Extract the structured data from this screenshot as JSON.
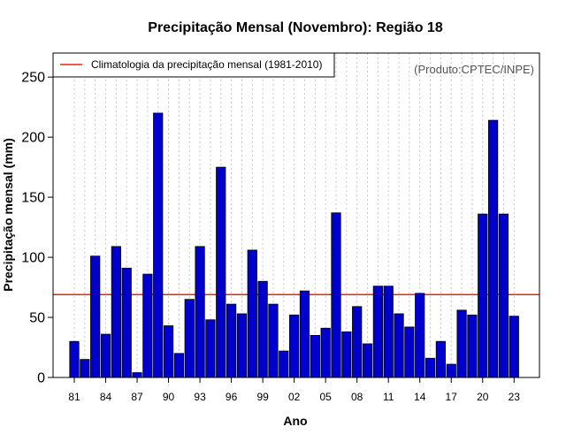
{
  "chart_data": {
    "type": "bar",
    "title": "Precipitação Mensal (Novembro): Região 18",
    "xlabel": "Ano",
    "ylabel": "Precipitação mensal (mm)",
    "ylim": [
      0,
      270
    ],
    "yticks": [
      0,
      50,
      100,
      150,
      200,
      250
    ],
    "x_tick_labels": [
      "81",
      "84",
      "87",
      "90",
      "93",
      "96",
      "99",
      "02",
      "05",
      "08",
      "11",
      "14",
      "17",
      "20",
      "23"
    ],
    "x_tick_years": [
      1981,
      1984,
      1987,
      1990,
      1993,
      1996,
      1999,
      2002,
      2005,
      2008,
      2011,
      2014,
      2017,
      2020,
      2023
    ],
    "years": [
      1981,
      1982,
      1983,
      1984,
      1985,
      1986,
      1987,
      1988,
      1989,
      1990,
      1991,
      1992,
      1993,
      1994,
      1995,
      1996,
      1997,
      1998,
      1999,
      2000,
      2001,
      2002,
      2003,
      2004,
      2005,
      2006,
      2007,
      2008,
      2009,
      2010,
      2011,
      2012,
      2013,
      2014,
      2015,
      2016,
      2017,
      2018,
      2019,
      2020,
      2021,
      2022,
      2023
    ],
    "values": [
      30,
      15,
      101,
      36,
      109,
      91,
      4,
      86,
      220,
      43,
      20,
      65,
      109,
      48,
      175,
      61,
      53,
      106,
      80,
      61,
      22,
      52,
      72,
      35,
      41,
      137,
      38,
      59,
      28,
      76,
      76,
      53,
      42,
      70,
      16,
      30,
      11,
      56,
      52,
      136,
      214,
      136,
      51
    ],
    "bar_color": "#0000cd",
    "climatology": {
      "label": "Climatologia da precipitação mensal (1981-2010)",
      "value": 69,
      "color": "#e8231f"
    },
    "legend_position": "top-left",
    "grid": "vertical dotted",
    "credit": "(Produto:CPTEC/INPE)"
  }
}
